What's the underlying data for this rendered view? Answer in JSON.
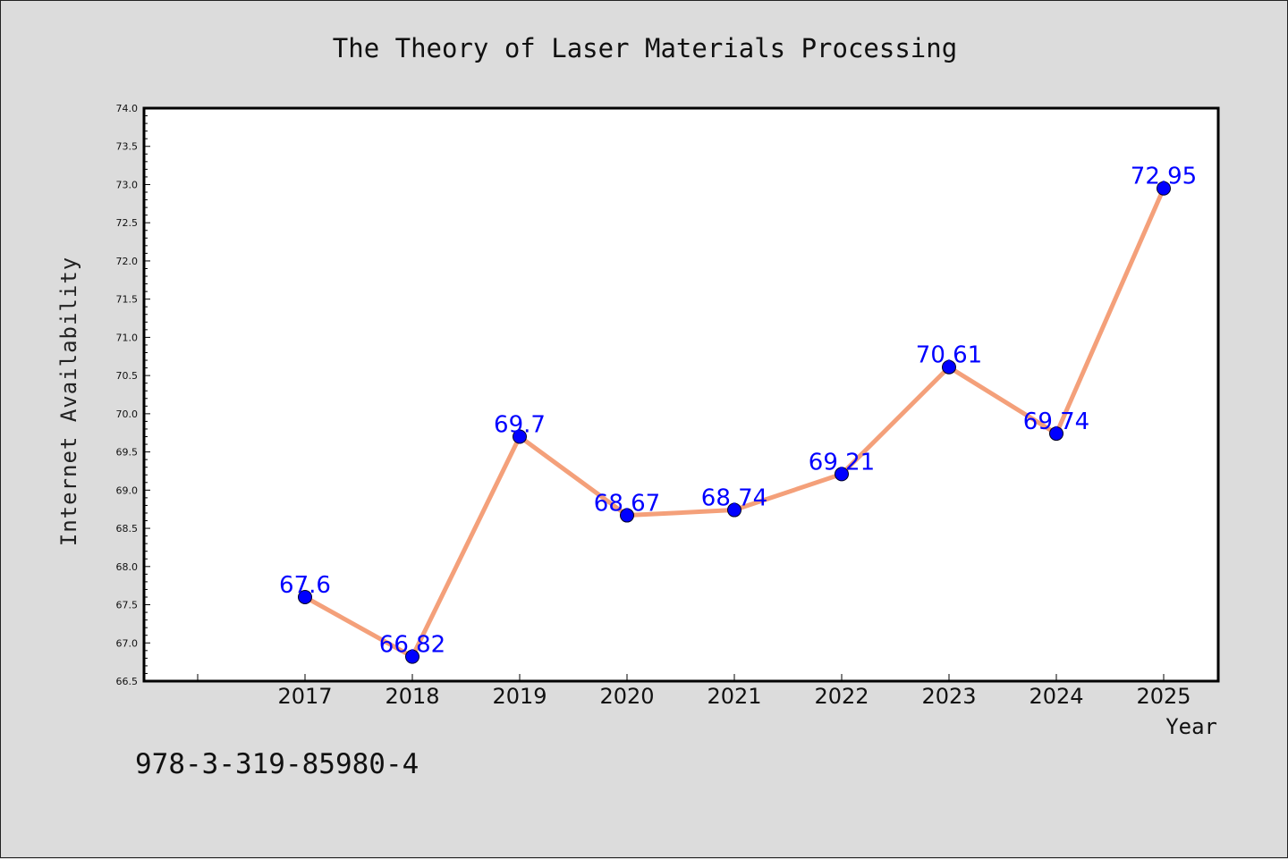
{
  "chart_data": {
    "type": "line",
    "title": "The Theory of Laser Materials Processing",
    "xlabel": "Year",
    "ylabel": "Internet Availability",
    "categories": [
      "2017",
      "2018",
      "2019",
      "2020",
      "2021",
      "2022",
      "2023",
      "2024",
      "2025"
    ],
    "series": [
      {
        "values": [
          67.6,
          66.82,
          69.7,
          68.67,
          68.74,
          69.21,
          70.61,
          69.74,
          72.95
        ],
        "data_labels": [
          "67.6",
          "66.82",
          "69.7",
          "68.67",
          "68.74",
          "69.21",
          "70.61",
          "69.74",
          "72.95"
        ],
        "line_color": "#f4a07a",
        "marker_color": "#0000ff"
      }
    ],
    "ylim": [
      66.5,
      74.0
    ],
    "yticks": [
      "66.5",
      "67.0",
      "67.5",
      "68.0",
      "68.5",
      "69.0",
      "69.5",
      "70.0",
      "70.5",
      "71.0",
      "71.5",
      "72.0",
      "72.5",
      "73.0",
      "73.5",
      "74.0"
    ],
    "grid": false,
    "legend": "none",
    "label_color": "#0000ff"
  },
  "footer": {
    "text": "978-3-319-85980-4"
  },
  "colors": {
    "background": "#dcdcdc",
    "plot_area": "#ffffff"
  }
}
